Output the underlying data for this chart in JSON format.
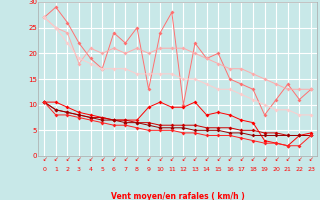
{
  "x": [
    0,
    1,
    2,
    3,
    4,
    5,
    6,
    7,
    8,
    9,
    10,
    11,
    12,
    13,
    14,
    15,
    16,
    17,
    18,
    19,
    20,
    21,
    22,
    23
  ],
  "line1_y": [
    27,
    29,
    26,
    22,
    19,
    17,
    24,
    22,
    25,
    13,
    24,
    28,
    10,
    22,
    19,
    20,
    15,
    14,
    13,
    8,
    11,
    14,
    11,
    13
  ],
  "line2_y": [
    27,
    25,
    24,
    18,
    21,
    20,
    21,
    20,
    21,
    20,
    21,
    21,
    21,
    20,
    19,
    18,
    17,
    17,
    16,
    15,
    14,
    13,
    13,
    13
  ],
  "line3_y": [
    27,
    25,
    22,
    19,
    18,
    17,
    17,
    17,
    16,
    16,
    16,
    16,
    15,
    15,
    14,
    13,
    13,
    12,
    11,
    10,
    9,
    9,
    8,
    8
  ],
  "line4_y": [
    10.5,
    10.5,
    9.5,
    8.5,
    8,
    7.5,
    7,
    7,
    7,
    9.5,
    10.5,
    9.5,
    9.5,
    10.5,
    8,
    8.5,
    8,
    7,
    6.5,
    3,
    2.5,
    2,
    4,
    4.5
  ],
  "line5_y": [
    10.5,
    9,
    8.5,
    8,
    7.5,
    7.5,
    7,
    7,
    6.5,
    6.5,
    6,
    6,
    6,
    6,
    5.5,
    5.5,
    5.5,
    5,
    5,
    4.5,
    4.5,
    4,
    4,
    4
  ],
  "line6_y": [
    10.5,
    9,
    8.5,
    8,
    7.5,
    7,
    7,
    6.5,
    6.5,
    6,
    5.5,
    5.5,
    5.5,
    5,
    5,
    5,
    4.5,
    4.5,
    4,
    4,
    4,
    4,
    4,
    4
  ],
  "line7_y": [
    10.5,
    8,
    8,
    7.5,
    7,
    6.5,
    6,
    6,
    5.5,
    5,
    5,
    5,
    4.5,
    4.5,
    4,
    4,
    4,
    3.5,
    3,
    2.5,
    2.5,
    2,
    2,
    4
  ],
  "bg_color": "#c8e8e8",
  "grid_color": "#ffffff",
  "line1_color": "#ff7070",
  "line2_color": "#ffaaaa",
  "line3_color": "#ffcccc",
  "line4_color": "#ff0000",
  "line5_color": "#cc0000",
  "line6_color": "#990000",
  "line7_color": "#ff2222",
  "xlabel": "Vent moyen/en rafales ( km/h )",
  "yticks": [
    0,
    5,
    10,
    15,
    20,
    25,
    30
  ],
  "ylim": [
    0,
    30
  ],
  "spine_color": "#aaaaaa"
}
